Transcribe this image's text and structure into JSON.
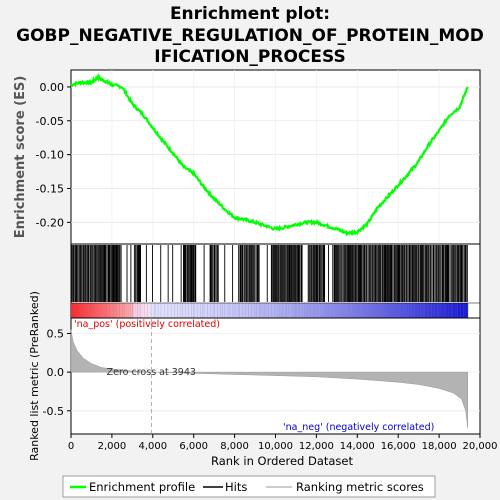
{
  "chart_data": {
    "type": "line",
    "title_lines": [
      "Enrichment plot:",
      "GOBP_NEGATIVE_REGULATION_OF_PROTEIN_MOD",
      "IFICATION_PROCESS"
    ],
    "top_panel": {
      "ylabel": "Enrichment score (ES)",
      "ylim": [
        -0.232,
        0.025
      ],
      "yticks": [
        0.0,
        -0.05,
        -0.1,
        -0.15,
        -0.2
      ],
      "ytick_labels": [
        "0.00",
        "-0.05",
        "-0.10",
        "-0.15",
        "-0.20"
      ],
      "line_color": "#00ff00",
      "profile_x": [
        0,
        500,
        1000,
        1300,
        1700,
        2000,
        2500,
        3000,
        3500,
        4000,
        4500,
        5000,
        5500,
        6000,
        6500,
        7000,
        7500,
        8000,
        8500,
        9000,
        9500,
        10000,
        10500,
        11000,
        11500,
        12000,
        12500,
        13000,
        13500,
        14000,
        14500,
        15000,
        15500,
        16000,
        16500,
        17000,
        17500,
        18000,
        18500,
        19000,
        19400
      ],
      "profile_y": [
        0.003,
        0.007,
        0.006,
        0.014,
        0.008,
        0.003,
        0.0,
        -0.025,
        -0.04,
        -0.06,
        -0.08,
        -0.098,
        -0.118,
        -0.128,
        -0.148,
        -0.165,
        -0.18,
        -0.193,
        -0.196,
        -0.2,
        -0.205,
        -0.21,
        -0.207,
        -0.203,
        -0.2,
        -0.2,
        -0.205,
        -0.21,
        -0.216,
        -0.214,
        -0.202,
        -0.178,
        -0.162,
        -0.145,
        -0.128,
        -0.11,
        -0.085,
        -0.065,
        -0.042,
        -0.03,
        0.0
      ]
    },
    "hits": {
      "description_visible": false,
      "dense_ranges": [
        [
          50,
          2450
        ],
        [
          3100,
          3400
        ],
        [
          5500,
          6100
        ],
        [
          6800,
          7200
        ],
        [
          8200,
          9200
        ],
        [
          9800,
          11300
        ],
        [
          11600,
          12400
        ],
        [
          12800,
          19400
        ]
      ],
      "sparse_ranges": [
        [
          2450,
          3100
        ],
        [
          3400,
          5500
        ],
        [
          6100,
          6800
        ],
        [
          7200,
          8200
        ],
        [
          9200,
          9800
        ],
        [
          11300,
          11600
        ],
        [
          12400,
          12800
        ]
      ]
    },
    "ranked_panel": {
      "ylabel": "Ranked list metric (PreRanked)",
      "xlabel": "Rank in Ordered Dataset",
      "xlim": [
        0,
        20000
      ],
      "xticks": [
        0,
        2000,
        4000,
        6000,
        8000,
        10000,
        12000,
        14000,
        16000,
        18000,
        20000
      ],
      "xtick_labels": [
        "0",
        "2,000",
        "4,000",
        "6,000",
        "8,000",
        "10,000",
        "12,000",
        "14,000",
        "16,000",
        "18,000",
        "20,000"
      ],
      "ylim": [
        -0.8,
        0.7
      ],
      "yticks": [
        0.5,
        0.0,
        -0.5
      ],
      "ytick_labels": [
        "0.5",
        "0.0",
        "-0.5"
      ],
      "metric_x": [
        0,
        100,
        300,
        600,
        1000,
        1500,
        2000,
        3000,
        3943,
        6000,
        8000,
        10000,
        12000,
        14000,
        16000,
        17000,
        18000,
        18700,
        19100,
        19300,
        19400
      ],
      "metric_y": [
        0.55,
        0.4,
        0.28,
        0.18,
        0.11,
        0.06,
        0.04,
        0.015,
        0.0,
        -0.015,
        -0.03,
        -0.045,
        -0.06,
        -0.09,
        -0.13,
        -0.16,
        -0.21,
        -0.27,
        -0.35,
        -0.5,
        -0.72
      ],
      "zero_cross_label": "Zero cross at 3943",
      "zero_cross_x": 3943,
      "pos_label": "'na_pos' (positively correlated)",
      "neg_label": "'na_neg' (negatively correlated)",
      "pos_color": "#dd0000",
      "neg_color": "#0000cc"
    },
    "legend": {
      "placement": "bottom",
      "entries": [
        {
          "label": "Enrichment profile",
          "color": "#00ff00"
        },
        {
          "label": "Hits",
          "color": "#000000"
        },
        {
          "label": "Ranking metric scores",
          "color": "#bbbbbb"
        }
      ]
    }
  }
}
